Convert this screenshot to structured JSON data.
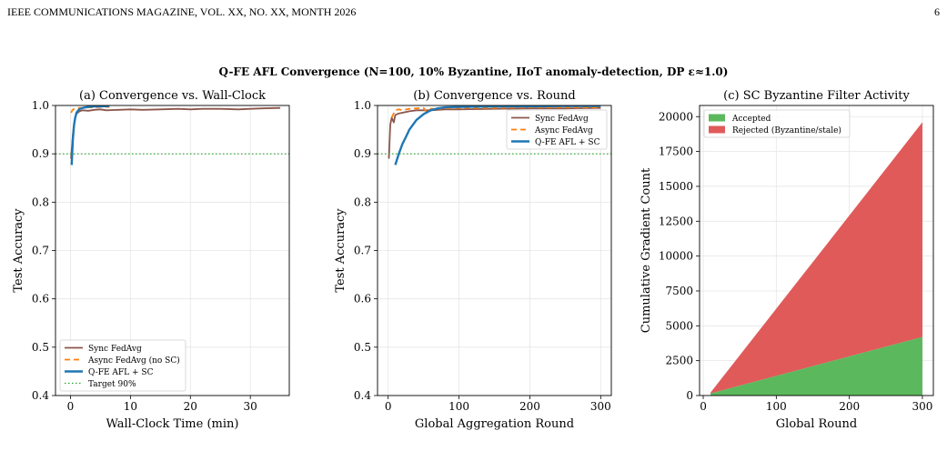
{
  "header": {
    "journal": "IEEE COMMUNICATIONS MAGAZINE, VOL. XX, NO. XX, MONTH 2026",
    "page": "6"
  },
  "figure": {
    "suptitle": "Q-FE AFL Convergence (N=100, 10% Byzantine, IIoT anomaly-detection, DP ε≈1.0)"
  },
  "chart_data": [
    {
      "type": "line",
      "title": "(a) Convergence vs. Wall-Clock",
      "xlabel": "Wall-Clock Time (min)",
      "ylabel": "Test Accuracy",
      "xlim": [
        -2.5,
        36.5
      ],
      "ylim": [
        0.4,
        1.0
      ],
      "xticks": [
        "0",
        "10",
        "20",
        "30"
      ],
      "yticks": [
        "0.4",
        "0.5",
        "0.6",
        "0.7",
        "0.8",
        "0.9",
        "1.0"
      ],
      "grid": true,
      "legend": "lower-left",
      "series": [
        {
          "name": "Sync FedAvg",
          "color": "#8c564b",
          "dash": "",
          "x": [
            0.1,
            0.4,
            0.7,
            1.0,
            1.5,
            2,
            3,
            4,
            5,
            6,
            8,
            10,
            12,
            15,
            18,
            20,
            22,
            25,
            28,
            30,
            32,
            35
          ],
          "y": [
            0.89,
            0.94,
            0.97,
            0.983,
            0.988,
            0.99,
            0.989,
            0.991,
            0.992,
            0.99,
            0.991,
            0.992,
            0.991,
            0.992,
            0.993,
            0.992,
            0.993,
            0.993,
            0.992,
            0.993,
            0.994,
            0.995
          ]
        },
        {
          "name": "Async FedAvg (no SC)",
          "color": "#ff7f0e",
          "dash": "6,4",
          "x": [
            0.1,
            0.3,
            0.6,
            1.0,
            1.5,
            2,
            3,
            4,
            5,
            6,
            6.5
          ],
          "y": [
            0.985,
            0.99,
            0.993,
            0.994,
            0.995,
            0.995,
            0.996,
            0.996,
            0.997,
            0.997,
            0.997
          ]
        },
        {
          "name": "Q-FE AFL + SC",
          "color": "#1f77b4",
          "dash": "",
          "x": [
            0.2,
            0.4,
            0.6,
            0.8,
            1.0,
            1.3,
            1.6,
            2.0,
            2.5,
            3.0,
            4.0,
            5.0,
            6.5
          ],
          "y": [
            0.877,
            0.93,
            0.96,
            0.975,
            0.985,
            0.99,
            0.993,
            0.995,
            0.996,
            0.997,
            0.998,
            0.998,
            0.999
          ]
        },
        {
          "name": "Target 90%",
          "color": "#2ca02c",
          "dash": "1.5,2.5",
          "x": [
            -2.5,
            36.5
          ],
          "y": [
            0.9,
            0.9
          ]
        }
      ]
    },
    {
      "type": "line",
      "title": "(b) Convergence vs. Round",
      "xlabel": "Global Aggregation Round",
      "ylabel": "Test Accuracy",
      "xlim": [
        -15,
        315
      ],
      "ylim": [
        0.4,
        1.0
      ],
      "xticks": [
        "0",
        "100",
        "200",
        "300"
      ],
      "yticks": [
        "0.4",
        "0.5",
        "0.6",
        "0.7",
        "0.8",
        "0.9",
        "1.0"
      ],
      "grid": true,
      "legend": "upper-right",
      "series": [
        {
          "name": "Sync FedAvg",
          "color": "#8c564b",
          "dash": "",
          "x": [
            1,
            3,
            5,
            8,
            10,
            14,
            20,
            30,
            40,
            60,
            80,
            100,
            150,
            200,
            250,
            300
          ],
          "y": [
            0.89,
            0.96,
            0.975,
            0.965,
            0.98,
            0.983,
            0.985,
            0.988,
            0.99,
            0.99,
            0.992,
            0.992,
            0.993,
            0.994,
            0.994,
            0.995
          ]
        },
        {
          "name": "Async FedAvg",
          "color": "#ff7f0e",
          "dash": "6,4",
          "x": [
            5,
            10,
            15,
            20,
            30,
            40,
            50,
            55,
            60,
            80,
            100,
            150,
            200,
            250,
            300
          ],
          "y": [
            0.975,
            0.99,
            0.992,
            0.99,
            0.993,
            0.994,
            0.995,
            0.985,
            0.993,
            0.994,
            0.995,
            0.995,
            0.996,
            0.996,
            0.996
          ]
        },
        {
          "name": "Q-FE AFL + SC",
          "color": "#1f77b4",
          "dash": "",
          "x": [
            10,
            15,
            20,
            25,
            30,
            40,
            50,
            60,
            70,
            80,
            100,
            150,
            200,
            250,
            300
          ],
          "y": [
            0.877,
            0.9,
            0.92,
            0.935,
            0.95,
            0.97,
            0.982,
            0.99,
            0.994,
            0.996,
            0.997,
            0.998,
            0.998,
            0.999,
            0.999
          ]
        },
        {
          "name": "",
          "color": "#2ca02c",
          "dash": "1.5,2.5",
          "x": [
            -15,
            315
          ],
          "y": [
            0.9,
            0.9
          ]
        }
      ]
    },
    {
      "type": "area",
      "stacked": true,
      "title": "(c) SC Byzantine Filter Activity",
      "xlabel": "Global Round",
      "ylabel": "Cumulative Gradient Count",
      "xlim": [
        -5,
        315
      ],
      "ylim": [
        0,
        20800
      ],
      "xticks": [
        "0",
        "100",
        "200",
        "300"
      ],
      "yticks": [
        "0",
        "2500",
        "5000",
        "7500",
        "10000",
        "12500",
        "15000",
        "17500",
        "20000"
      ],
      "grid": true,
      "legend": "upper-left",
      "x": [
        10,
        300
      ],
      "series": [
        {
          "name": "Accepted",
          "color": "#5cb85c",
          "values": [
            150,
            4200
          ]
        },
        {
          "name": "Rejected (Byzantine/stale)",
          "color": "#e05a5a",
          "values": [
            60,
            15400
          ]
        }
      ]
    }
  ]
}
